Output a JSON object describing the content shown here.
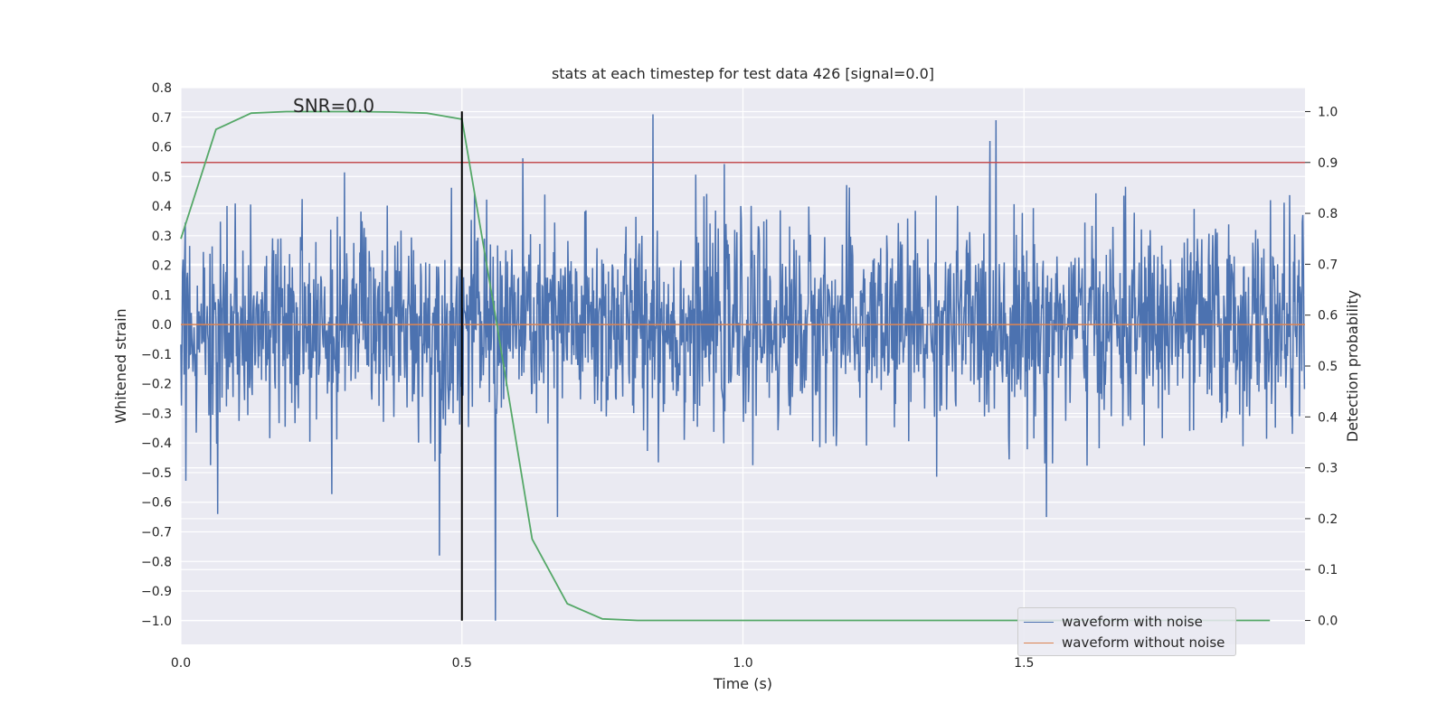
{
  "chart_data": {
    "type": "line",
    "title": "stats at each timestep for test data 426 [signal=0.0]",
    "xlabel": "Time (s)",
    "ylabel_left": "Whitened strain",
    "ylabel_right": "Detection probability",
    "xlim": [
      0.0,
      2.0
    ],
    "ylim_left": [
      -1.08,
      0.8
    ],
    "ylim_right": [
      -0.047,
      1.047
    ],
    "xticks": [
      "0.0",
      "0.5",
      "1.0",
      "1.5"
    ],
    "yticks_left": [
      "0.8",
      "0.7",
      "0.6",
      "0.5",
      "0.4",
      "0.3",
      "0.2",
      "0.1",
      "0.0",
      "−0.1",
      "−0.2",
      "−0.3",
      "−0.4",
      "−0.5",
      "−0.6",
      "−0.7",
      "−0.8",
      "−0.9",
      "−1.0"
    ],
    "yticks_right": [
      "1.0",
      "0.9",
      "0.8",
      "0.7",
      "0.6",
      "0.5",
      "0.4",
      "0.3",
      "0.2",
      "0.1",
      "0.0"
    ],
    "annotation": "SNR=0.0",
    "grid": true,
    "legend_position": "lower-right",
    "colors": {
      "noisy": "#4c72b0",
      "clean": "#dd8452",
      "probability": "#55a868",
      "threshold": "#c44e52",
      "marker": "#000000",
      "background": "#eaeaf2"
    },
    "series": [
      {
        "name": "waveform with noise",
        "axis": "left",
        "sampling": "approximately 2048 noisy samples over 0–2 s, amplitude roughly within −0.65 to 0.72, with notable spikes",
        "spikes": [
          {
            "x": 0.46,
            "y": -0.78
          },
          {
            "x": 0.56,
            "y": -1.0
          },
          {
            "x": 0.84,
            "y": 0.71
          },
          {
            "x": 1.45,
            "y": 0.69
          },
          {
            "x": 0.065,
            "y": -0.64
          },
          {
            "x": 1.54,
            "y": -0.65
          },
          {
            "x": 0.67,
            "y": -0.65
          }
        ]
      },
      {
        "name": "waveform without noise",
        "axis": "left",
        "x": [
          0.0,
          2.0
        ],
        "y": [
          0.0,
          0.0
        ]
      },
      {
        "axis": "right",
        "x": [
          0.0,
          0.0625,
          0.125,
          0.1875,
          0.25,
          0.3125,
          0.375,
          0.4375,
          0.5,
          0.5625,
          0.625,
          0.6875,
          0.75,
          0.8125,
          0.875,
          0.9375,
          1.0,
          1.0625,
          1.125,
          1.1875,
          1.25,
          1.3125,
          1.375,
          1.4375,
          1.5,
          1.5625,
          1.625,
          1.6875,
          1.75,
          1.8125,
          1.875,
          1.9375
        ],
        "y": [
          0.75,
          0.965,
          0.997,
          1.0,
          1.0,
          1.0,
          0.999,
          0.997,
          0.985,
          0.58,
          0.16,
          0.033,
          0.003,
          0.0,
          0.0,
          0.0,
          0.0,
          0.0,
          0.0,
          0.0,
          0.0,
          0.0,
          0.0,
          0.0,
          0.0,
          0.0,
          0.0,
          0.0,
          0.0,
          0.0,
          0.0,
          0.0
        ]
      },
      {
        "axis": "right",
        "x": [
          0.0,
          2.0
        ],
        "y": [
          0.9,
          0.9
        ]
      },
      {
        "axis": "left",
        "x": [
          0.5,
          0.5
        ],
        "y": [
          -1.0,
          0.72
        ]
      }
    ]
  }
}
